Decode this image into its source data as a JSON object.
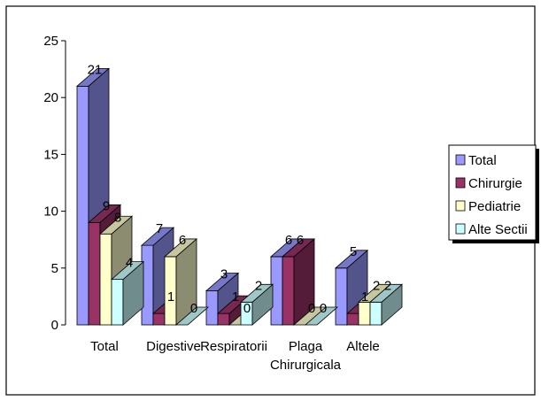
{
  "chart_data": {
    "type": "bar",
    "title": "",
    "xlabel": "",
    "ylabel": "",
    "categories": [
      "Total",
      "Digestive",
      "Respiratorii",
      "Plaga Chirurgicala",
      "Altele"
    ],
    "category_lines": [
      [
        "Total"
      ],
      [
        "Digestive"
      ],
      [
        "Respiratorii"
      ],
      [
        "Plaga",
        "Chirurgicala"
      ],
      [
        "Altele"
      ]
    ],
    "ylim": [
      0,
      25
    ],
    "yticks": [
      0,
      5,
      10,
      15,
      20,
      25
    ],
    "legend_position": "right",
    "grid": false,
    "three_d": true,
    "series": [
      {
        "name": "Total",
        "color": "#9999ff",
        "values": [
          21,
          7,
          3,
          6,
          5
        ]
      },
      {
        "name": "Chirurgie",
        "color": "#993366",
        "values": [
          9,
          1,
          1,
          6,
          1
        ]
      },
      {
        "name": "Pediatrie",
        "color": "#ffffcc",
        "values": [
          8,
          6,
          0,
          0,
          2
        ]
      },
      {
        "name": "Alte Sectii",
        "color": "#ccffff",
        "values": [
          4,
          0,
          2,
          0,
          2
        ]
      }
    ]
  }
}
